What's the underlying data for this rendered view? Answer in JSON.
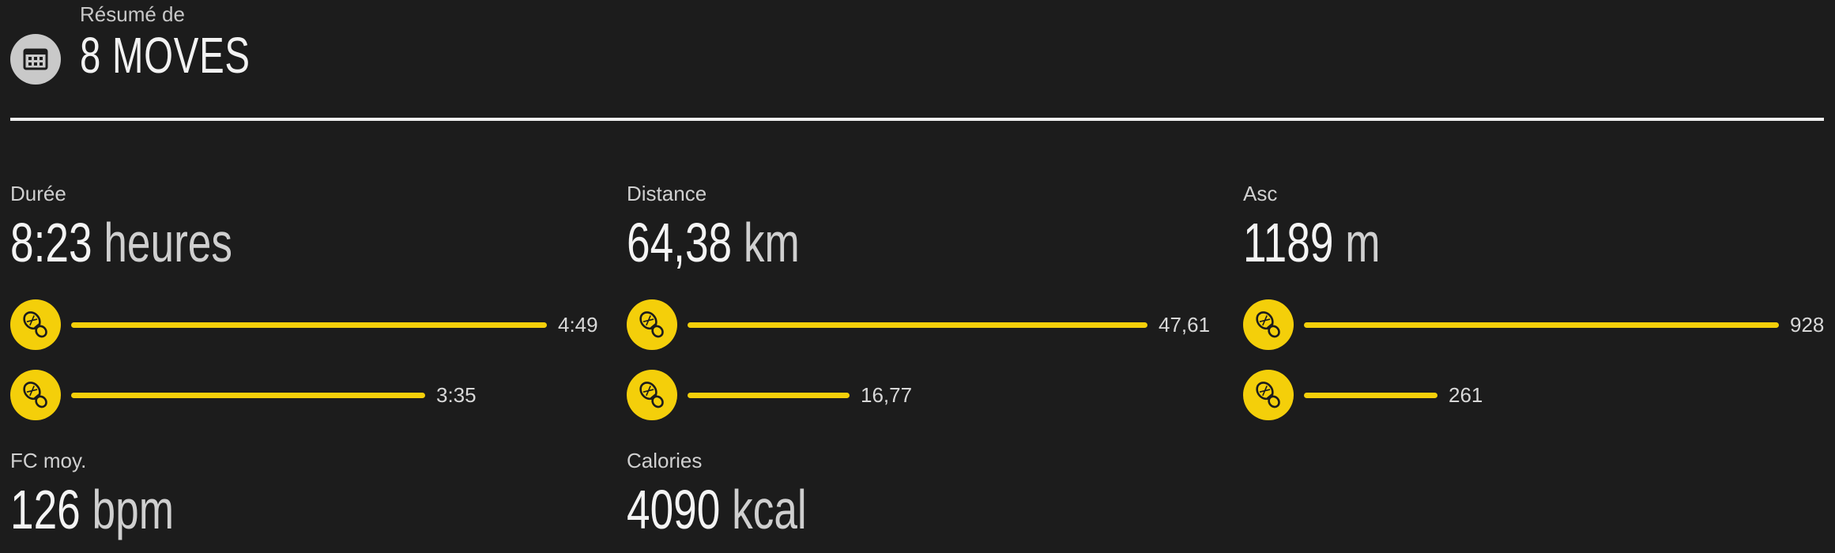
{
  "header": {
    "subtitle": "Résumé de",
    "title": "8 MOVES"
  },
  "stats": {
    "duration": {
      "label": "Durée",
      "value": "8:23",
      "unit": "heures",
      "breakdown": [
        {
          "icon": "trail-running-shoe-icon",
          "value": "4:49",
          "fraction": 1.0
        },
        {
          "icon": "running-shoe-icon",
          "value": "3:35",
          "fraction": 0.745
        }
      ]
    },
    "distance": {
      "label": "Distance",
      "value": "64,38",
      "unit": "km",
      "breakdown": [
        {
          "icon": "trail-running-shoe-icon",
          "value": "47,61",
          "fraction": 1.0
        },
        {
          "icon": "running-shoe-icon",
          "value": "16,77",
          "fraction": 0.352
        }
      ]
    },
    "ascent": {
      "label": "Asc",
      "value": "1189",
      "unit": "m",
      "breakdown": [
        {
          "icon": "running-shoe-icon",
          "value": "928",
          "fraction": 1.0
        },
        {
          "icon": "trail-running-shoe-icon",
          "value": "261",
          "fraction": 0.281
        }
      ]
    },
    "heart_rate": {
      "label": "FC moy.",
      "value": "126",
      "unit": "bpm"
    },
    "calories": {
      "label": "Calories",
      "value": "4090",
      "unit": "kcal"
    }
  },
  "colors": {
    "background": "#1c1c1c",
    "accent": "#f4cf0a",
    "divider": "#f0f0f0"
  }
}
